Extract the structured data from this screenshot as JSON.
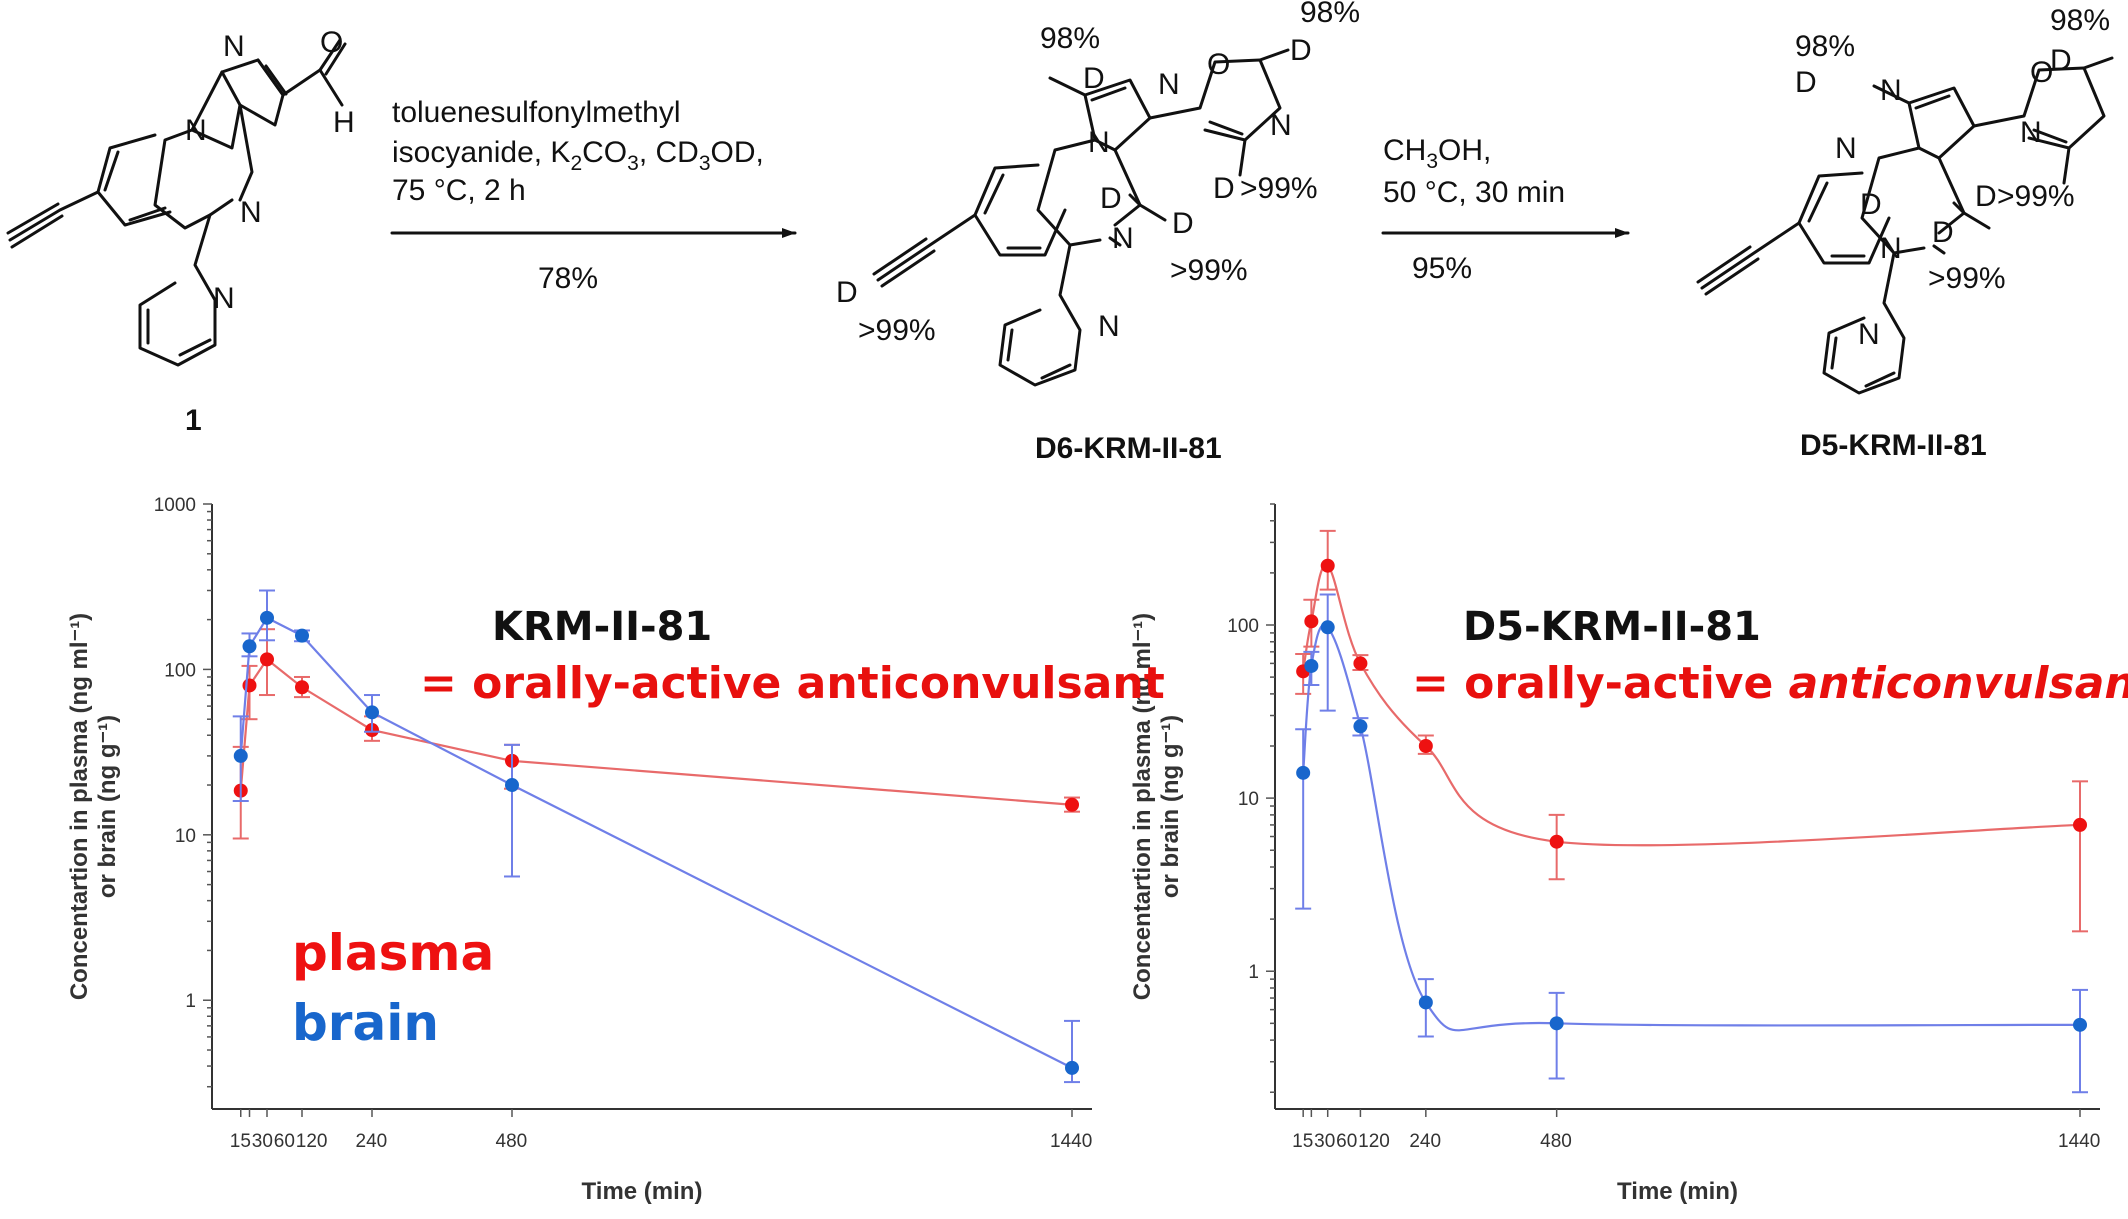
{
  "scheme": {
    "compound1": {
      "label": "1",
      "atoms": {
        "o": "O",
        "h": "H",
        "n_imid": "N",
        "n_diaz": "N",
        "n_pyr": "N"
      }
    },
    "step1": {
      "reagent_line1": "toluenesulfonylmethyl",
      "reagent_line2_parts": [
        "isocyanide, K",
        "2",
        "CO",
        "3",
        ", CD",
        "3",
        "OD,"
      ],
      "reagent_line3": "75 °C, 2 h",
      "yield": "78%"
    },
    "d6": {
      "label": "D6-KRM-II-81",
      "d_imid_pct": "98%",
      "d_ox_pct": "98%",
      "d_ox5_pct": ">99%",
      "d_ch2_pct": ">99%",
      "d_alkyne_pct": ">99%",
      "atoms": {
        "d": "D",
        "n": "N",
        "o": "O"
      }
    },
    "step2": {
      "reagent_parts": [
        "CH",
        "3",
        "OH,"
      ],
      "reagent_line2": "50 °C, 30 min",
      "yield": "95%"
    },
    "d5": {
      "label": "D5-KRM-II-81",
      "d_imid_pct": "98%",
      "d_ox_pct": "98%",
      "d_ox5_pct": ">99%",
      "d_ch2_pct": ">99%",
      "atoms": {
        "d": "D",
        "n": "N",
        "o": "O"
      }
    }
  },
  "colors": {
    "plasma": "#ee1111",
    "brain": "#1866cc",
    "plasma_line": "#e86a6a",
    "brain_line": "#6f7fe8"
  },
  "legend": {
    "plasma": "plasma",
    "brain": "brain"
  },
  "chart_data": [
    {
      "type": "line",
      "title": "KRM-II-81",
      "subtitle": "= orally-active anticonvulsant",
      "xlabel": "Time (min)",
      "ylabel_line1": "Concentartion in plasma (ng ml⁻¹)",
      "ylabel_line2": "or brain (ng g⁻¹)",
      "yscale": "log",
      "ylim": [
        0.22,
        1000
      ],
      "xlim": [
        0,
        1440
      ],
      "x_ticks": [
        15,
        30,
        60,
        120,
        240,
        480,
        1440
      ],
      "x_tick_labels": [
        "15",
        "30",
        "60",
        "120",
        "240",
        "480",
        "1440"
      ],
      "y_ticks": [
        1,
        10,
        100,
        1000
      ],
      "y_tick_labels": [
        "1",
        "10",
        "100",
        "1000"
      ],
      "series": [
        {
          "name": "plasma",
          "x": [
            15,
            30,
            60,
            120,
            240,
            480,
            1440
          ],
          "y": [
            18.5,
            80,
            115,
            78,
            43,
            28,
            15.2
          ],
          "err_low": [
            9.5,
            50,
            70,
            68,
            37,
            19,
            13.8
          ],
          "err_high": [
            34,
            105,
            175,
            90,
            52,
            35,
            16.8
          ]
        },
        {
          "name": "brain",
          "x": [
            15,
            30,
            60,
            120,
            240,
            480,
            1440
          ],
          "y": [
            30,
            138,
            205,
            160,
            55,
            20,
            0.39
          ],
          "err_low": [
            16,
            120,
            150,
            148,
            42,
            5.6,
            0.32
          ],
          "err_high": [
            52,
            165,
            300,
            172,
            70,
            35,
            0.75
          ]
        }
      ]
    },
    {
      "type": "line",
      "title": "D5-KRM-II-81",
      "subtitle_parts": [
        "= orally-active ",
        "anticonvulsant"
      ],
      "xlabel": "Time (min)",
      "ylabel_line1": "Concentartion in plasma (ng ml⁻¹)",
      "ylabel_line2": "or brain (ng g⁻¹)",
      "yscale": "log",
      "ylim": [
        0.16,
        500
      ],
      "xlim": [
        0,
        1440
      ],
      "x_ticks": [
        15,
        30,
        60,
        120,
        240,
        480,
        1440
      ],
      "x_tick_labels": [
        "15",
        "30",
        "60",
        "120",
        "240",
        "480",
        "1440"
      ],
      "y_ticks": [
        1,
        10,
        100
      ],
      "y_tick_labels": [
        "1",
        "10",
        "100"
      ],
      "series": [
        {
          "name": "plasma",
          "x": [
            15,
            30,
            60,
            120,
            240,
            480,
            1440
          ],
          "y": [
            54,
            105,
            220,
            60,
            20,
            5.6,
            7.0
          ],
          "err_low": [
            40,
            75,
            160,
            55,
            18,
            3.4,
            1.7
          ],
          "err_high": [
            68,
            140,
            350,
            67,
            23,
            8.0,
            12.5
          ]
        },
        {
          "name": "brain",
          "x": [
            15,
            30,
            60,
            120,
            240,
            480,
            1440
          ],
          "y": [
            14,
            58,
            97,
            26,
            0.66,
            0.5,
            0.49
          ],
          "err_low": [
            2.3,
            45,
            32,
            23,
            0.42,
            0.24,
            0.2
          ],
          "err_high": [
            25,
            70,
            150,
            29,
            0.9,
            0.75,
            0.78
          ]
        }
      ]
    }
  ]
}
